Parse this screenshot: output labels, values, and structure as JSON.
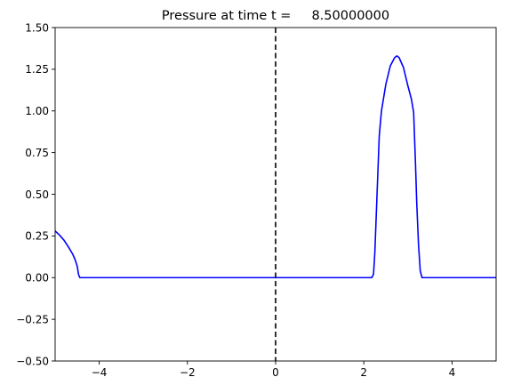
{
  "chart_data": {
    "type": "line",
    "title": "Pressure at time t =     8.50000000",
    "xlabel": "",
    "ylabel": "",
    "xlim": [
      -5,
      5
    ],
    "ylim": [
      -0.5,
      1.5
    ],
    "x_ticks": [
      -4,
      -2,
      0,
      2,
      4
    ],
    "x_tick_labels": [
      "−4",
      "−2",
      "0",
      "2",
      "4"
    ],
    "y_ticks": [
      -0.5,
      -0.25,
      0.0,
      0.25,
      0.5,
      0.75,
      1.0,
      1.25,
      1.5
    ],
    "y_tick_labels": [
      "−0.50",
      "−0.25",
      "0.00",
      "0.25",
      "0.50",
      "0.75",
      "1.00",
      "1.25",
      "1.50"
    ],
    "grid": false,
    "colors": {
      "series": "#0000ff",
      "reference_line": "#000000"
    },
    "reference_line": {
      "x": 0,
      "style": "dashed"
    },
    "series": [
      {
        "x": [
          -5.0,
          -4.9,
          -4.8,
          -4.7,
          -4.6,
          -4.55,
          -4.5,
          -4.47,
          -4.44,
          -4.0,
          -2.0,
          0.0,
          2.0,
          2.18,
          2.22,
          2.25,
          2.3,
          2.35,
          2.4,
          2.45,
          2.5,
          2.6,
          2.7,
          2.75,
          2.8,
          2.9,
          3.0,
          3.08,
          3.13,
          3.17,
          3.2,
          3.24,
          3.28,
          3.32,
          3.4,
          4.0,
          5.0
        ],
        "y": [
          0.28,
          0.255,
          0.225,
          0.185,
          0.14,
          0.11,
          0.07,
          0.02,
          0.0,
          0.0,
          0.0,
          0.0,
          0.0,
          0.0,
          0.02,
          0.15,
          0.5,
          0.85,
          1.0,
          1.08,
          1.16,
          1.27,
          1.32,
          1.33,
          1.32,
          1.26,
          1.15,
          1.07,
          0.99,
          0.7,
          0.45,
          0.2,
          0.04,
          0.0,
          0.0,
          0.0,
          0.0
        ]
      }
    ]
  }
}
